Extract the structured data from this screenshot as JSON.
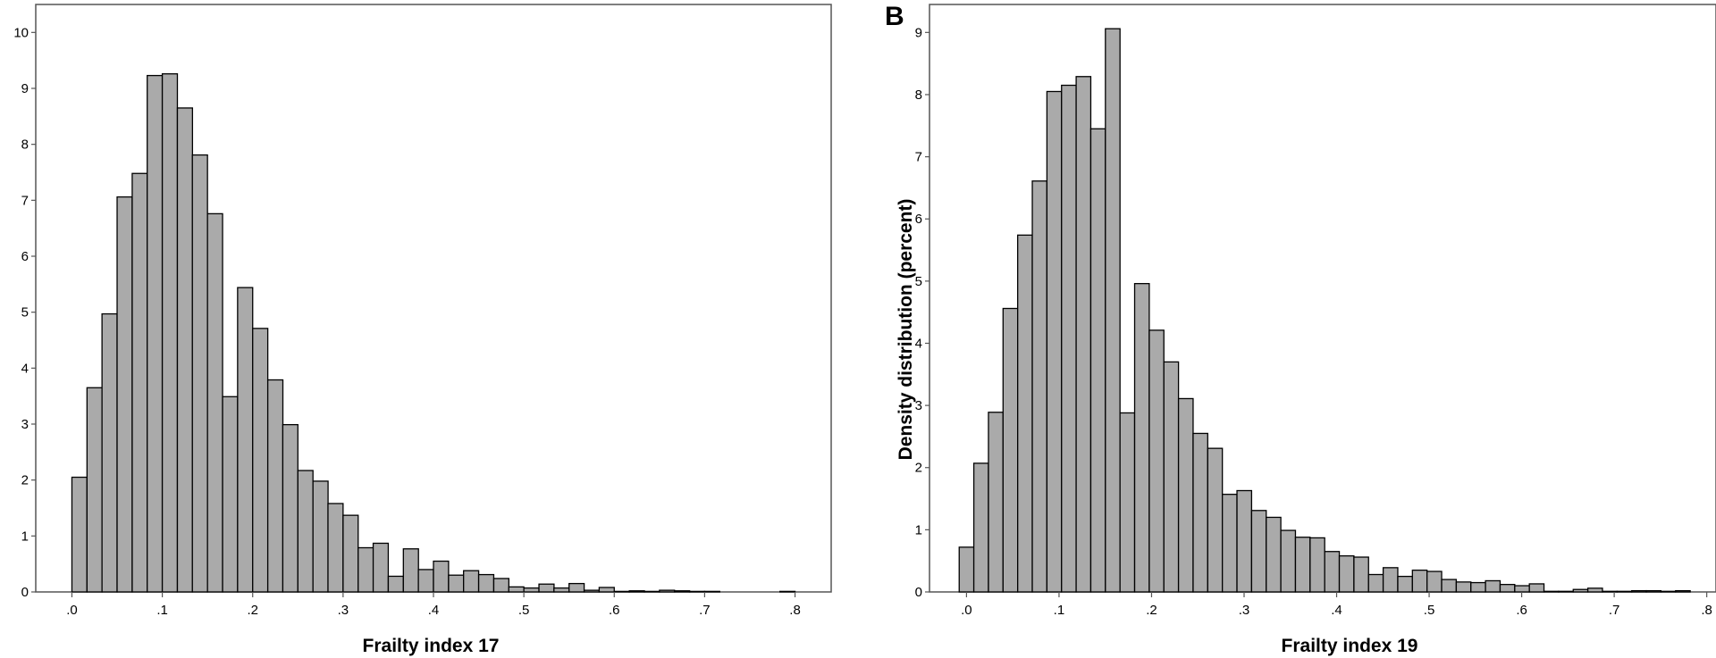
{
  "chart_data": [
    {
      "type": "bar",
      "panel_label": "",
      "title": "",
      "xlabel": "Frailty index 17",
      "ylabel": "",
      "bin_width": 0.0167,
      "xlim": [
        -0.04,
        0.84
      ],
      "ylim": [
        0,
        10.5
      ],
      "xticks": [
        0,
        0.1,
        0.2,
        0.3,
        0.4,
        0.5,
        0.6,
        0.7,
        0.8
      ],
      "xtick_labels": [
        ".0",
        ".1",
        ".2",
        ".3",
        ".4",
        ".5",
        ".6",
        ".7",
        ".8"
      ],
      "yticks": [
        0,
        1,
        2,
        3,
        4,
        5,
        6,
        7,
        8,
        9,
        10
      ],
      "ytick_labels": [
        "0",
        "1",
        "2",
        "3",
        "4",
        "5",
        "6",
        "7",
        "8",
        "9",
        "10"
      ],
      "grid": false,
      "bar_color": "#aaaaaa",
      "edge_color": "#000000",
      "bins": [
        {
          "x": 0.0,
          "y": 2.05
        },
        {
          "x": 0.0167,
          "y": 3.65
        },
        {
          "x": 0.0333,
          "y": 4.97
        },
        {
          "x": 0.05,
          "y": 7.06
        },
        {
          "x": 0.0667,
          "y": 7.48
        },
        {
          "x": 0.0833,
          "y": 9.23
        },
        {
          "x": 0.1,
          "y": 9.26
        },
        {
          "x": 0.1167,
          "y": 8.65
        },
        {
          "x": 0.1333,
          "y": 7.81
        },
        {
          "x": 0.15,
          "y": 6.76
        },
        {
          "x": 0.1667,
          "y": 3.49
        },
        {
          "x": 0.1833,
          "y": 5.44
        },
        {
          "x": 0.2,
          "y": 4.71
        },
        {
          "x": 0.2167,
          "y": 3.79
        },
        {
          "x": 0.2333,
          "y": 2.99
        },
        {
          "x": 0.25,
          "y": 2.17
        },
        {
          "x": 0.2667,
          "y": 1.98
        },
        {
          "x": 0.2833,
          "y": 1.58
        },
        {
          "x": 0.3,
          "y": 1.37
        },
        {
          "x": 0.3167,
          "y": 0.79
        },
        {
          "x": 0.3333,
          "y": 0.87
        },
        {
          "x": 0.35,
          "y": 0.28
        },
        {
          "x": 0.3667,
          "y": 0.77
        },
        {
          "x": 0.3833,
          "y": 0.4
        },
        {
          "x": 0.4,
          "y": 0.55
        },
        {
          "x": 0.4167,
          "y": 0.3
        },
        {
          "x": 0.4333,
          "y": 0.38
        },
        {
          "x": 0.45,
          "y": 0.31
        },
        {
          "x": 0.4667,
          "y": 0.24
        },
        {
          "x": 0.4833,
          "y": 0.09
        },
        {
          "x": 0.5,
          "y": 0.07
        },
        {
          "x": 0.5167,
          "y": 0.14
        },
        {
          "x": 0.5333,
          "y": 0.07
        },
        {
          "x": 0.55,
          "y": 0.15
        },
        {
          "x": 0.5667,
          "y": 0.03
        },
        {
          "x": 0.5833,
          "y": 0.08
        },
        {
          "x": 0.6,
          "y": 0.01
        },
        {
          "x": 0.6167,
          "y": 0.02
        },
        {
          "x": 0.6333,
          "y": 0.01
        },
        {
          "x": 0.65,
          "y": 0.03
        },
        {
          "x": 0.6667,
          "y": 0.02
        },
        {
          "x": 0.6833,
          "y": 0.01
        },
        {
          "x": 0.7,
          "y": 0.01
        },
        {
          "x": 0.7833,
          "y": 0.01
        }
      ]
    },
    {
      "type": "bar",
      "panel_label": "B",
      "title": "",
      "xlabel": "Frailty index 19",
      "ylabel": "Density distribution (percent)",
      "bin_width": 0.0158,
      "xlim": [
        -0.04,
        0.81
      ],
      "ylim": [
        0,
        9.45
      ],
      "xticks": [
        0,
        0.1,
        0.2,
        0.3,
        0.4,
        0.5,
        0.6,
        0.7,
        0.8
      ],
      "xtick_labels": [
        ".0",
        ".1",
        ".2",
        ".3",
        ".4",
        ".5",
        ".6",
        ".7",
        ".8"
      ],
      "yticks": [
        0,
        1,
        2,
        3,
        4,
        5,
        6,
        7,
        8,
        9
      ],
      "ytick_labels": [
        "0",
        "1",
        "2",
        "3",
        "4",
        "5",
        "6",
        "7",
        "8",
        "9"
      ],
      "grid": false,
      "bar_color": "#aaaaaa",
      "edge_color": "#000000",
      "bins": [
        {
          "x": -0.0079,
          "y": 0.72
        },
        {
          "x": 0.0079,
          "y": 2.07
        },
        {
          "x": 0.0237,
          "y": 2.89
        },
        {
          "x": 0.0395,
          "y": 4.56
        },
        {
          "x": 0.0553,
          "y": 5.74
        },
        {
          "x": 0.0711,
          "y": 6.61
        },
        {
          "x": 0.0869,
          "y": 8.05
        },
        {
          "x": 0.1027,
          "y": 8.15
        },
        {
          "x": 0.1185,
          "y": 8.29
        },
        {
          "x": 0.1343,
          "y": 7.45
        },
        {
          "x": 0.1501,
          "y": 9.06
        },
        {
          "x": 0.1659,
          "y": 2.88
        },
        {
          "x": 0.1817,
          "y": 4.96
        },
        {
          "x": 0.1975,
          "y": 4.21
        },
        {
          "x": 0.2133,
          "y": 3.7
        },
        {
          "x": 0.2291,
          "y": 3.11
        },
        {
          "x": 0.2449,
          "y": 2.55
        },
        {
          "x": 0.2607,
          "y": 2.31
        },
        {
          "x": 0.2765,
          "y": 1.57
        },
        {
          "x": 0.2923,
          "y": 1.63
        },
        {
          "x": 0.3081,
          "y": 1.31
        },
        {
          "x": 0.3239,
          "y": 1.2
        },
        {
          "x": 0.3397,
          "y": 0.99
        },
        {
          "x": 0.3555,
          "y": 0.88
        },
        {
          "x": 0.3713,
          "y": 0.87
        },
        {
          "x": 0.3871,
          "y": 0.65
        },
        {
          "x": 0.4029,
          "y": 0.58
        },
        {
          "x": 0.4187,
          "y": 0.56
        },
        {
          "x": 0.4345,
          "y": 0.28
        },
        {
          "x": 0.4503,
          "y": 0.39
        },
        {
          "x": 0.4661,
          "y": 0.25
        },
        {
          "x": 0.4819,
          "y": 0.35
        },
        {
          "x": 0.4977,
          "y": 0.33
        },
        {
          "x": 0.5135,
          "y": 0.2
        },
        {
          "x": 0.5293,
          "y": 0.16
        },
        {
          "x": 0.5451,
          "y": 0.15
        },
        {
          "x": 0.5609,
          "y": 0.18
        },
        {
          "x": 0.5767,
          "y": 0.12
        },
        {
          "x": 0.5925,
          "y": 0.1
        },
        {
          "x": 0.6083,
          "y": 0.13
        },
        {
          "x": 0.6241,
          "y": 0.01
        },
        {
          "x": 0.6399,
          "y": 0.01
        },
        {
          "x": 0.6557,
          "y": 0.04
        },
        {
          "x": 0.6715,
          "y": 0.06
        },
        {
          "x": 0.6873,
          "y": 0.01
        },
        {
          "x": 0.7031,
          "y": 0.01
        },
        {
          "x": 0.7189,
          "y": 0.02
        },
        {
          "x": 0.7347,
          "y": 0.02
        },
        {
          "x": 0.7505,
          "y": 0.01
        },
        {
          "x": 0.7663,
          "y": 0.02
        }
      ]
    }
  ]
}
